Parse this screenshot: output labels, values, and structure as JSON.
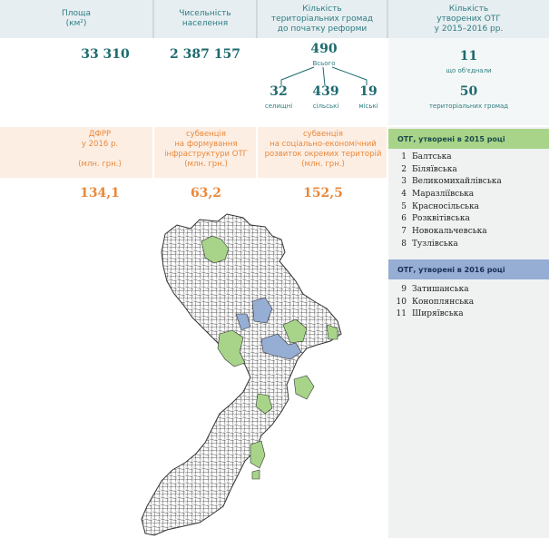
{
  "header": {
    "area_label": "Площа",
    "area_unit": "(км²)",
    "population_label_1": "Чисельність",
    "population_label_2": "населення",
    "communities_label_1": "Кількість",
    "communities_label_2": "територіальних громад",
    "communities_label_3": "до початку реформи",
    "otg_label_1": "Кількість",
    "otg_label_2": "утворених ОТГ",
    "otg_label_3": "у 2015–2016 рр."
  },
  "stats": {
    "area": "33 310",
    "population": "2 387 157",
    "total_communities": "490",
    "total_label": "Всього",
    "settlement": "32",
    "settlement_label": "селищні",
    "rural": "439",
    "rural_label": "сільські",
    "urban": "19",
    "urban_label": "міські",
    "otg_count": "11",
    "otg_count_label": "що об'єднали",
    "otg_merged": "50",
    "otg_merged_label": "територіальних громад"
  },
  "funding": {
    "dfrr_label_1": "ДФРР",
    "dfrr_label_2": "у 2016 р.",
    "dfrr_unit": "(млн. грн.)",
    "dfrr_value": "134,1",
    "infra_label_1": "субвенція",
    "infra_label_2": "на формування",
    "infra_label_3": "інфраструктури ОТГ",
    "infra_unit": "(млн. грн.)",
    "infra_value": "63,2",
    "socio_label_1": "субвенція",
    "socio_label_2": "на соціально-економічний",
    "socio_label_3": "розвиток окремих територій",
    "socio_unit": "(млн. грн.)",
    "socio_value": "152,5"
  },
  "panel": {
    "header_2015": "ОТГ, утворені в 2015 році",
    "list_2015": [
      {
        "n": "1",
        "name": "Балтська"
      },
      {
        "n": "2",
        "name": "Біляївська"
      },
      {
        "n": "3",
        "name": "Великомихайлівська"
      },
      {
        "n": "4",
        "name": "Маразліївська"
      },
      {
        "n": "5",
        "name": "Красносільська"
      },
      {
        "n": "6",
        "name": "Розквітівська"
      },
      {
        "n": "7",
        "name": "Новокальчевська"
      },
      {
        "n": "8",
        "name": "Тузлівська"
      }
    ],
    "header_2016": "ОТГ, утворені в 2016 році",
    "list_2016": [
      {
        "n": "9",
        "name": "Затишанська"
      },
      {
        "n": "10",
        "name": "Коноплянська"
      },
      {
        "n": "11",
        "name": "Ширяївська"
      }
    ]
  },
  "colors": {
    "otg_2015": "#a8d489",
    "otg_2016": "#96add4",
    "teal": "#1d6a6e",
    "orange": "#e8893c"
  }
}
